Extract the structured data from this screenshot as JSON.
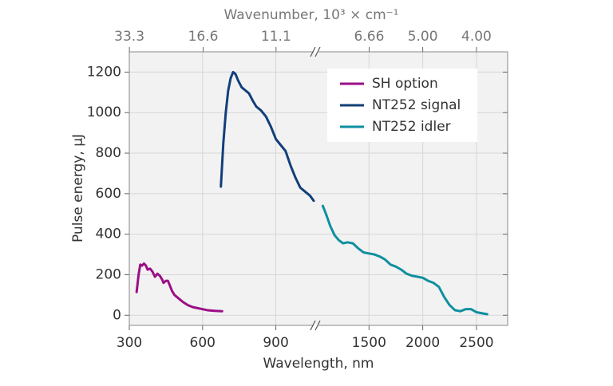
{
  "chart_data": {
    "type": "line",
    "x_label": "Wavelength, nm",
    "y_label": "Pulse energy, µJ",
    "x2_label": "Wavenumber, 10³ × cm⁻¹",
    "x_segments": [
      {
        "xlim": [
          300,
          1055
        ],
        "xticks": [
          300,
          600,
          900
        ]
      },
      {
        "xlim": [
          1030,
          2790
        ],
        "xticks": [
          1500,
          2000,
          2500
        ]
      }
    ],
    "x2ticks": [
      33.3,
      16.6,
      11.1,
      6.66,
      {
        "value": 5,
        "label": "5.00"
      },
      {
        "value": 4,
        "label": "4.00"
      }
    ],
    "ylim": [
      -50,
      1300
    ],
    "yticks": [
      0,
      200,
      400,
      600,
      800,
      1000,
      1200
    ],
    "grid": true,
    "legend": "upper right",
    "series": [
      {
        "name": "SH option",
        "color": "#9b0f86",
        "x": [
          330,
          338,
          345,
          352,
          360,
          368,
          375,
          385,
          395,
          405,
          415,
          425,
          435,
          440,
          450,
          458,
          465,
          475,
          485,
          500,
          520,
          540,
          560,
          580,
          600,
          620,
          650,
          680
        ],
        "values": [
          115,
          200,
          250,
          245,
          255,
          245,
          225,
          230,
          215,
          190,
          205,
          195,
          175,
          160,
          170,
          170,
          150,
          120,
          100,
          85,
          65,
          50,
          40,
          35,
          30,
          25,
          22,
          20
        ]
      },
      {
        "name": "NT252 signal",
        "color": "#123f7a",
        "x": [
          675,
          685,
          695,
          705,
          715,
          725,
          735,
          745,
          760,
          775,
          790,
          805,
          820,
          840,
          860,
          880,
          900,
          920,
          940,
          960,
          980,
          1000,
          1020,
          1040,
          1055
        ],
        "values": [
          635,
          850,
          1000,
          1110,
          1170,
          1200,
          1190,
          1160,
          1125,
          1110,
          1095,
          1060,
          1030,
          1010,
          980,
          930,
          870,
          840,
          810,
          740,
          680,
          630,
          610,
          590,
          565
        ]
      },
      {
        "name": "NT252 idler",
        "color": "#0f8fa0",
        "x": [
          1070,
          1100,
          1140,
          1180,
          1220,
          1260,
          1300,
          1350,
          1400,
          1450,
          1500,
          1550,
          1600,
          1650,
          1700,
          1750,
          1800,
          1850,
          1900,
          1950,
          2000,
          2050,
          2100,
          2150,
          2200,
          2250,
          2300,
          2350,
          2400,
          2450,
          2500,
          2600
        ],
        "values": [
          540,
          500,
          440,
          395,
          370,
          355,
          360,
          355,
          330,
          310,
          305,
          300,
          290,
          275,
          250,
          240,
          225,
          205,
          195,
          190,
          185,
          170,
          160,
          140,
          90,
          50,
          25,
          20,
          30,
          30,
          15,
          5
        ]
      }
    ]
  }
}
